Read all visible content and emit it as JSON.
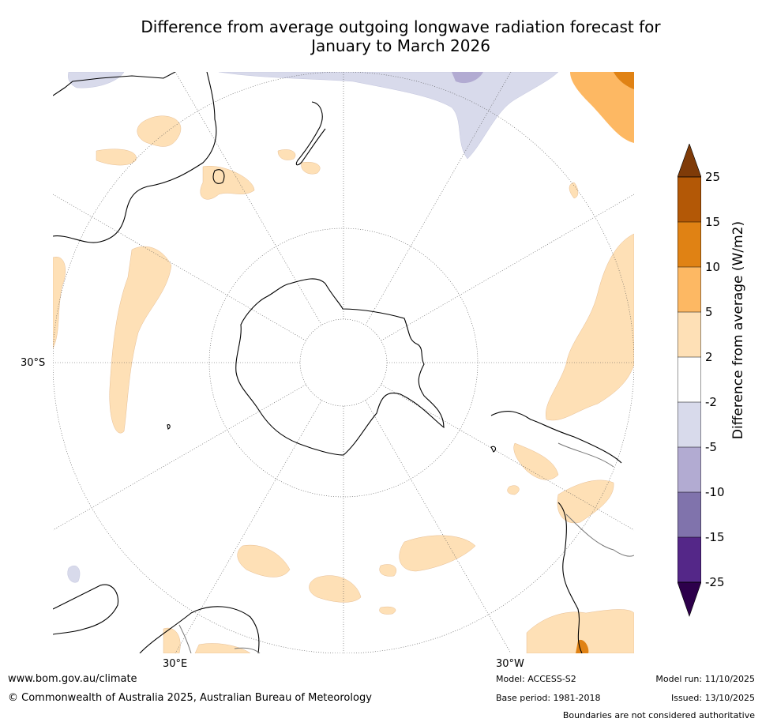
{
  "title_line1": "Difference from average outgoing longwave radiation forecast for",
  "title_line2": "January to March 2026",
  "labels": {
    "lat_30s": "30°S",
    "lon_30e": "30°E",
    "lon_30w": "30°W"
  },
  "legend": {
    "title": "Difference from average (W/m2)",
    "ticks": [
      "25",
      "15",
      "10",
      "5",
      "2",
      "-2",
      "-5",
      "-10",
      "-15",
      "-25"
    ],
    "colors": {
      "over": "#7f3b08",
      "c15_25": "#b35806",
      "c10_15": "#e08214",
      "c5_10": "#fdb863",
      "c2_5": "#fee0b6",
      "neutral": "#ffffff",
      "cm2_m5": "#d8daeb",
      "cm5_m10": "#b2abd2",
      "cm10_m15": "#8073ac",
      "cm15_m25": "#542788",
      "under": "#2d004b"
    }
  },
  "footer": {
    "website": "www.bom.gov.au/climate",
    "copyright": "© Commonwealth of Australia 2025, Australian Bureau of Meteorology",
    "model": "Model: ACCESS-S2",
    "base_period": "Base period: 1981-2018",
    "model_run": "Model run: 11/10/2025",
    "issued": "Issued: 13/10/2025",
    "disclaimer": "Boundaries are not considered authoritative"
  }
}
